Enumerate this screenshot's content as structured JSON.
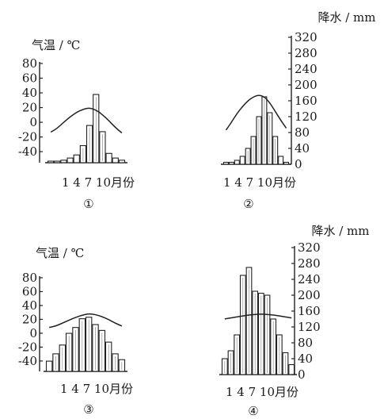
{
  "chart_data": [
    {
      "type": "bar",
      "panel_label": "①",
      "temp_axis_label": "气温 / ℃",
      "precip_axis_label": "",
      "xlabel": "1 4 7 10月份",
      "temp_ticks": [
        "80",
        "60",
        "40",
        "20",
        "0",
        "-20",
        "-40"
      ],
      "precip_ticks": [],
      "temp_range": [
        -45,
        85
      ],
      "precip_range": [
        0,
        320
      ],
      "months": [
        1,
        2,
        3,
        4,
        5,
        6,
        7,
        8,
        9,
        10,
        11,
        12
      ],
      "temperature": [
        -5,
        0,
        8,
        15,
        21,
        25,
        27,
        24,
        18,
        10,
        1,
        -6
      ],
      "precipitation": [
        5,
        5,
        8,
        15,
        25,
        55,
        120,
        220,
        100,
        30,
        15,
        8
      ]
    },
    {
      "type": "bar",
      "panel_label": "②",
      "temp_axis_label": "",
      "precip_axis_label": "降水 / mm",
      "xlabel": "1 4 7 10月份",
      "temp_ticks": [],
      "precip_ticks": [
        "320",
        "280",
        "240",
        "200",
        "160",
        "120",
        "80",
        "40",
        "0"
      ],
      "temp_range": [
        -45,
        85
      ],
      "precip_range": [
        0,
        320
      ],
      "months": [
        1,
        2,
        3,
        4,
        5,
        6,
        7,
        8,
        9,
        10,
        11,
        12
      ],
      "temperature": [
        -10,
        -2,
        7,
        14,
        20,
        24,
        26,
        24,
        18,
        9,
        0,
        -8
      ],
      "precipitation": [
        5,
        5,
        10,
        20,
        40,
        70,
        120,
        170,
        130,
        70,
        20,
        5
      ]
    },
    {
      "type": "bar",
      "panel_label": "③",
      "temp_axis_label": "气温 / ℃",
      "precip_axis_label": "",
      "xlabel": "1 4 7 10月份",
      "temp_ticks": [
        "80",
        "60",
        "40",
        "20",
        "0",
        "-20",
        "-40"
      ],
      "precip_ticks": [],
      "temp_range": [
        -45,
        85
      ],
      "precip_range": [
        0,
        320
      ],
      "months": [
        1,
        2,
        3,
        4,
        5,
        6,
        7,
        8,
        9,
        10,
        11,
        12
      ],
      "temperature": [
        16,
        18,
        22,
        26,
        30,
        33,
        35,
        34,
        31,
        27,
        22,
        18
      ],
      "precipitation": [
        35,
        60,
        90,
        130,
        150,
        180,
        185,
        160,
        140,
        100,
        60,
        40
      ]
    },
    {
      "type": "bar",
      "panel_label": "④",
      "temp_axis_label": "",
      "precip_axis_label": "降水 / mm",
      "xlabel": "1 4 7 10月份",
      "temp_ticks": [],
      "precip_ticks": [
        "320",
        "280",
        "240",
        "200",
        "160",
        "120",
        "80",
        "40",
        "0"
      ],
      "temp_range": [
        -45,
        85
      ],
      "precip_range": [
        0,
        320
      ],
      "months": [
        1,
        2,
        3,
        4,
        5,
        6,
        7,
        8,
        9,
        10,
        11,
        12
      ],
      "temperature": [
        12,
        13,
        14,
        15,
        16,
        16.5,
        17,
        16.5,
        16,
        15,
        14,
        13
      ],
      "precipitation": [
        40,
        60,
        100,
        250,
        270,
        210,
        205,
        200,
        140,
        100,
        55,
        25
      ]
    }
  ]
}
